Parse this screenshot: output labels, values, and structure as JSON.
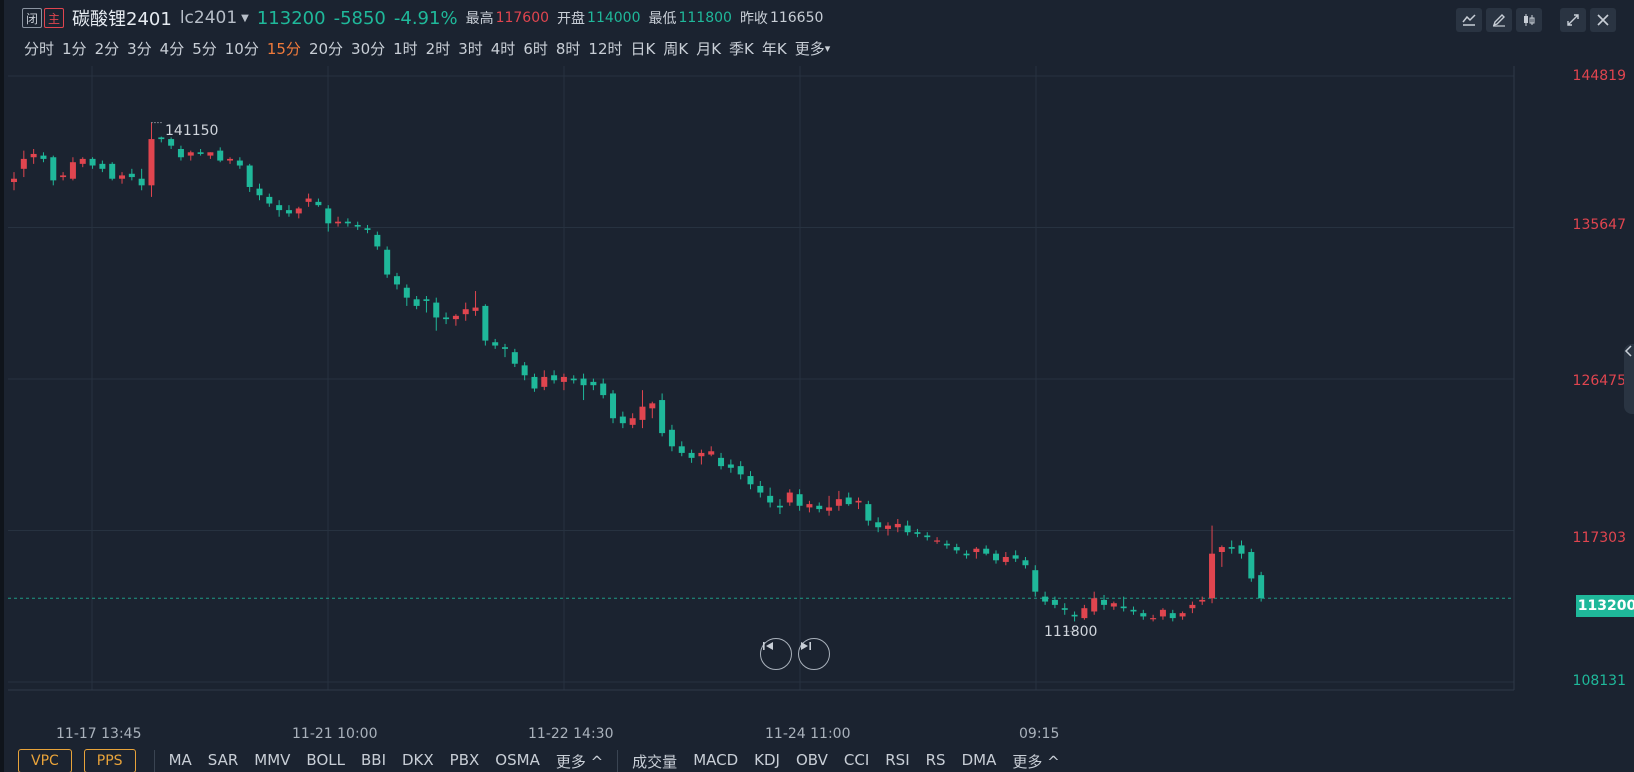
{
  "header": {
    "tag_close": "闭",
    "tag_main": "主",
    "name": "碳酸锂2401",
    "code": "lc2401",
    "last": "113200",
    "change": "-5850",
    "change_pct": "-4.91%",
    "high_label": "最高",
    "high": "117600",
    "open_label": "开盘",
    "open": "114000",
    "low_label": "最低",
    "low": "111800",
    "prev_label": "昨收",
    "prev": "116650"
  },
  "periods": [
    "分时",
    "1分",
    "2分",
    "3分",
    "4分",
    "5分",
    "10分",
    "15分",
    "20分",
    "30分",
    "1时",
    "2时",
    "3时",
    "4时",
    "6时",
    "8时",
    "12时",
    "日K",
    "周K",
    "月K",
    "季K",
    "年K",
    "更多"
  ],
  "active_period": "15分",
  "colors": {
    "up": "#e0454f",
    "down": "#1fb89a",
    "bg": "#1b2330",
    "active": "#f07a3b"
  },
  "icons": [
    "line-chart-icon",
    "draw-pen-icon",
    "candle-type-icon",
    "expand-icon",
    "close-icon",
    "prev-icon",
    "next-icon",
    "collapse-panel-icon"
  ],
  "y_axis": [
    "144819",
    "135647",
    "126475",
    "117303",
    "108131"
  ],
  "last_price_label": "113200",
  "x_axis": [
    "11-17 13:45",
    "11-21 10:00",
    "11-22 14:30",
    "11-24 11:00",
    "09:15"
  ],
  "annotations": {
    "high": "141150",
    "low": "111800"
  },
  "indicators": {
    "main_boxes": [
      "VPC",
      "PPS"
    ],
    "main": [
      "MA",
      "SAR",
      "MMV",
      "BOLL",
      "BBI",
      "DKX",
      "PBX",
      "OSMA",
      "更多 ^"
    ],
    "sub": [
      "成交量",
      "MACD",
      "KDJ",
      "OBV",
      "CCI",
      "RSI",
      "RS",
      "DMA",
      "更多 ^"
    ]
  },
  "chart_data": {
    "type": "candlestick",
    "ylim": [
      108131,
      144819
    ],
    "y_ticks": [
      144819,
      135647,
      126475,
      117303,
      108131
    ],
    "candles": [
      [
        138400,
        139000,
        137900,
        138600
      ],
      [
        139200,
        140300,
        138700,
        139800
      ],
      [
        139900,
        140400,
        139500,
        140100
      ],
      [
        140000,
        140200,
        139600,
        139800
      ],
      [
        139900,
        140000,
        138200,
        138500
      ],
      [
        138700,
        139000,
        138500,
        138800
      ],
      [
        138600,
        139900,
        138500,
        139600
      ],
      [
        139500,
        139900,
        139300,
        139800
      ],
      [
        139800,
        139900,
        139200,
        139400
      ],
      [
        139500,
        139700,
        139000,
        139200
      ],
      [
        139500,
        139600,
        138500,
        138600
      ],
      [
        138600,
        139000,
        138300,
        138800
      ],
      [
        138900,
        139200,
        138500,
        138700
      ],
      [
        138600,
        139200,
        137900,
        138200
      ],
      [
        138200,
        142000,
        137500,
        141000
      ],
      [
        141100,
        141150,
        140800,
        141000
      ],
      [
        141000,
        141100,
        140400,
        140600
      ],
      [
        140400,
        140600,
        139700,
        139900
      ],
      [
        140000,
        140300,
        139700,
        140200
      ],
      [
        140200,
        140400,
        140000,
        140100
      ],
      [
        140000,
        140200,
        139800,
        140200
      ],
      [
        140300,
        140500,
        139600,
        139700
      ],
      [
        139700,
        139900,
        139500,
        139800
      ],
      [
        139700,
        139900,
        139200,
        139400
      ],
      [
        139400,
        139500,
        137800,
        138100
      ],
      [
        138000,
        138300,
        137300,
        137600
      ],
      [
        137500,
        137700,
        136900,
        137100
      ],
      [
        137000,
        137300,
        136300,
        136700
      ],
      [
        136700,
        137000,
        136300,
        136500
      ],
      [
        136500,
        136900,
        136200,
        136800
      ],
      [
        137200,
        137700,
        136900,
        137400
      ],
      [
        137200,
        137400,
        136900,
        137000
      ],
      [
        136800,
        137000,
        135400,
        135900
      ],
      [
        135900,
        136300,
        135700,
        136000
      ],
      [
        136000,
        136200,
        135700,
        135900
      ],
      [
        135800,
        136000,
        135500,
        135700
      ],
      [
        135600,
        135800,
        135300,
        135500
      ],
      [
        135200,
        135400,
        134300,
        134500
      ],
      [
        134300,
        134500,
        132600,
        132800
      ],
      [
        132700,
        132900,
        131900,
        132200
      ],
      [
        132000,
        132200,
        130900,
        131400
      ],
      [
        131300,
        131500,
        130700,
        130900
      ],
      [
        131300,
        131500,
        130500,
        131200
      ],
      [
        131100,
        131400,
        129400,
        130200
      ],
      [
        130200,
        130500,
        129800,
        130100
      ],
      [
        130100,
        130400,
        129700,
        130300
      ],
      [
        130400,
        131100,
        130000,
        130700
      ],
      [
        130600,
        131800,
        130300,
        130800
      ],
      [
        130900,
        131000,
        128500,
        128800
      ],
      [
        128700,
        128900,
        128300,
        128500
      ],
      [
        128400,
        128600,
        127800,
        128300
      ],
      [
        128100,
        128300,
        127200,
        127400
      ],
      [
        127300,
        127500,
        126400,
        126700
      ],
      [
        126600,
        126800,
        125700,
        125900
      ],
      [
        126000,
        127000,
        125800,
        126600
      ],
      [
        126700,
        127000,
        126200,
        126400
      ],
      [
        126300,
        126800,
        125800,
        126600
      ],
      [
        126500,
        126700,
        126200,
        126400
      ],
      [
        126500,
        126800,
        125200,
        126100
      ],
      [
        126300,
        126500,
        125800,
        126100
      ],
      [
        126200,
        126500,
        125300,
        125500
      ],
      [
        125600,
        125800,
        123800,
        124100
      ],
      [
        124200,
        124500,
        123500,
        123800
      ],
      [
        123700,
        124400,
        123500,
        124100
      ],
      [
        124000,
        125800,
        123500,
        124800
      ],
      [
        124700,
        125100,
        124100,
        125000
      ],
      [
        125200,
        125600,
        123000,
        123200
      ],
      [
        123400,
        123700,
        122100,
        122400
      ],
      [
        122400,
        122700,
        121800,
        122000
      ],
      [
        122000,
        122200,
        121400,
        121700
      ],
      [
        121800,
        122200,
        121300,
        122000
      ],
      [
        121900,
        122400,
        121800,
        122100
      ],
      [
        121700,
        122000,
        121000,
        121200
      ],
      [
        121300,
        121600,
        120800,
        121100
      ],
      [
        121200,
        121500,
        120400,
        120700
      ],
      [
        120600,
        120900,
        119800,
        120100
      ],
      [
        120000,
        120300,
        119300,
        119600
      ],
      [
        119400,
        119900,
        118700,
        119000
      ],
      [
        118800,
        119200,
        118300,
        118700
      ],
      [
        119000,
        119800,
        118800,
        119600
      ],
      [
        119500,
        119800,
        118500,
        118800
      ],
      [
        118700,
        119100,
        118400,
        118900
      ],
      [
        118800,
        119000,
        118400,
        118600
      ],
      [
        118500,
        119400,
        118200,
        118700
      ],
      [
        118800,
        119700,
        118500,
        119200
      ],
      [
        119300,
        119600,
        118800,
        118900
      ],
      [
        119000,
        119300,
        118600,
        119100
      ],
      [
        118900,
        119100,
        117600,
        117900
      ],
      [
        117800,
        118100,
        117200,
        117500
      ],
      [
        117400,
        117800,
        117000,
        117600
      ],
      [
        117500,
        118000,
        117200,
        117700
      ],
      [
        117600,
        117900,
        117000,
        117200
      ],
      [
        117200,
        117400,
        116900,
        117100
      ],
      [
        117000,
        117200,
        116700,
        116900
      ],
      [
        116700,
        116900,
        116500,
        116700
      ],
      [
        116500,
        116700,
        116200,
        116400
      ],
      [
        116300,
        116500,
        115900,
        116100
      ],
      [
        115900,
        116100,
        115600,
        115800
      ],
      [
        116000,
        116300,
        115600,
        116200
      ],
      [
        116200,
        116400,
        115800,
        115900
      ],
      [
        115900,
        116100,
        115300,
        115500
      ],
      [
        115400,
        116000,
        115200,
        115700
      ],
      [
        115800,
        116100,
        115400,
        115600
      ],
      [
        115500,
        115700,
        115000,
        115200
      ],
      [
        114900,
        115200,
        113300,
        113600
      ],
      [
        113300,
        113600,
        112800,
        113000
      ],
      [
        113100,
        113300,
        112600,
        112800
      ],
      [
        112600,
        112900,
        112200,
        112500
      ],
      [
        112200,
        112400,
        111800,
        112100
      ],
      [
        112000,
        112800,
        111900,
        112600
      ],
      [
        112400,
        113600,
        112200,
        113200
      ],
      [
        113100,
        113400,
        112500,
        112800
      ],
      [
        112700,
        113000,
        112500,
        112900
      ],
      [
        112700,
        113300,
        112400,
        112600
      ],
      [
        112500,
        112700,
        112200,
        112400
      ],
      [
        112300,
        112500,
        111900,
        112100
      ],
      [
        112000,
        112200,
        111800,
        112000
      ],
      [
        112100,
        112600,
        111900,
        112500
      ],
      [
        112300,
        112500,
        111800,
        112000
      ],
      [
        112100,
        112400,
        111900,
        112300
      ],
      [
        112600,
        113000,
        112300,
        112800
      ],
      [
        113000,
        113300,
        112800,
        113100
      ],
      [
        113200,
        117600,
        112900,
        115900
      ],
      [
        116000,
        116400,
        115100,
        116300
      ],
      [
        116300,
        116700,
        115900,
        116200
      ],
      [
        116400,
        116700,
        115600,
        115900
      ],
      [
        116000,
        116200,
        114200,
        114400
      ],
      [
        114600,
        114800,
        113000,
        113200
      ]
    ]
  }
}
